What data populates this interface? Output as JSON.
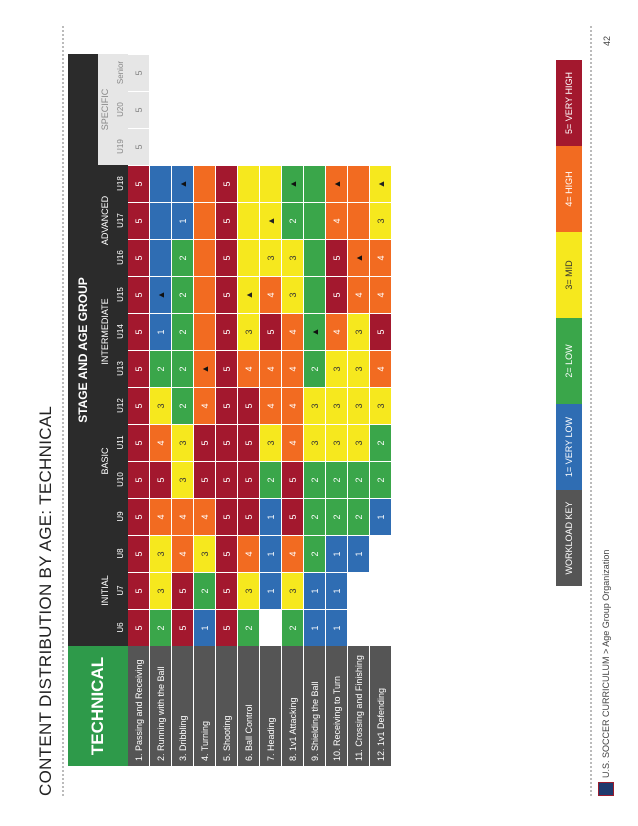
{
  "page_title": "CONTENT DISTRIBUTION BY AGE: TECHNICAL",
  "stage_header": "STAGE AND AGE GROUP",
  "technical_label": "TECHNICAL",
  "stages": [
    {
      "name": "INITIAL",
      "ages": [
        "U6",
        "U7",
        "U8"
      ]
    },
    {
      "name": "BASIC",
      "ages": [
        "U9",
        "U10",
        "U11",
        "U12"
      ]
    },
    {
      "name": "INTERMEDIATE",
      "ages": [
        "U13",
        "U14",
        "U15"
      ]
    },
    {
      "name": "ADVANCED",
      "ages": [
        "U16",
        "U17",
        "U18"
      ]
    },
    {
      "name": "SPECIFIC",
      "ages": [
        "U19",
        "U20",
        "Senior"
      ]
    }
  ],
  "colors": {
    "1": "#2f6db3",
    "2": "#3aa64a",
    "3": "#f6e81e",
    "4": "#f26b21",
    "5": "#a3182e",
    "blank": "#ffffff",
    "specific": "#e6e6e6",
    "header": "#2b2b2b",
    "label": "#555555",
    "technical": "#2e9a4a"
  },
  "arrow_symbol": "🡅",
  "rows": [
    {
      "label": "1. Passing and Receiving",
      "cells": [
        5,
        5,
        5,
        5,
        5,
        5,
        5,
        5,
        5,
        5,
        5,
        5,
        5,
        "5s",
        "5s",
        "5s"
      ]
    },
    {
      "label": "2. Running with the Ball",
      "cells": [
        2,
        3,
        3,
        4,
        5,
        4,
        3,
        2,
        1,
        "1^",
        "b1",
        "b1",
        "b1",
        "",
        "",
        ""
      ]
    },
    {
      "label": "3. Dribbling",
      "cells": [
        5,
        5,
        4,
        4,
        3,
        3,
        2,
        2,
        2,
        2,
        2,
        1,
        "1^",
        "",
        "",
        ""
      ]
    },
    {
      "label": "4. Turning",
      "cells": [
        1,
        2,
        3,
        4,
        5,
        5,
        4,
        "4^",
        "b4",
        "b4",
        "b4",
        "b4",
        "b4",
        "",
        "",
        ""
      ]
    },
    {
      "label": "5. Shooting",
      "cells": [
        5,
        5,
        5,
        5,
        5,
        5,
        5,
        5,
        5,
        5,
        5,
        5,
        5,
        "",
        "",
        ""
      ]
    },
    {
      "label": "6. Ball Control",
      "cells": [
        2,
        3,
        4,
        5,
        5,
        5,
        5,
        4,
        3,
        "3^",
        "b3",
        "b3",
        "b3",
        "",
        "",
        ""
      ]
    },
    {
      "label": "7. Heading",
      "cells": [
        "",
        1,
        1,
        1,
        2,
        3,
        4,
        4,
        5,
        4,
        3,
        "3^",
        "b3",
        "",
        "",
        ""
      ]
    },
    {
      "label": "8. 1v1 Attacking",
      "cells": [
        2,
        3,
        4,
        5,
        5,
        4,
        4,
        4,
        4,
        3,
        3,
        2,
        "2^",
        "",
        "",
        ""
      ]
    },
    {
      "label": "9. Shielding the Ball",
      "cells": [
        1,
        1,
        2,
        2,
        2,
        3,
        3,
        2,
        "2^",
        "b2",
        "b2",
        "b2",
        "b2",
        "",
        "",
        ""
      ]
    },
    {
      "label": "10. Receiving to Turn",
      "cells": [
        1,
        1,
        1,
        2,
        2,
        3,
        3,
        3,
        4,
        5,
        5,
        4,
        "4^",
        "",
        "",
        ""
      ]
    },
    {
      "label": "11. Crossing and Finishing",
      "cells": [
        "",
        "",
        1,
        2,
        2,
        3,
        3,
        3,
        3,
        4,
        "4^",
        "b4",
        "b4",
        "",
        "",
        ""
      ]
    },
    {
      "label": "12. 1v1 Defending",
      "cells": [
        "",
        "",
        "",
        1,
        2,
        2,
        3,
        4,
        5,
        4,
        4,
        3,
        "3^",
        "",
        "",
        ""
      ]
    }
  ],
  "workload_key": {
    "label": "WORKLOAD KEY",
    "items": [
      "1= VERY LOW",
      "2= LOW",
      "3= MID",
      "4= HIGH",
      "5= VERY HIGH"
    ]
  },
  "footer": "U.S. SOCCER CURRICULUM > Age Group Organization",
  "page_number": "42"
}
